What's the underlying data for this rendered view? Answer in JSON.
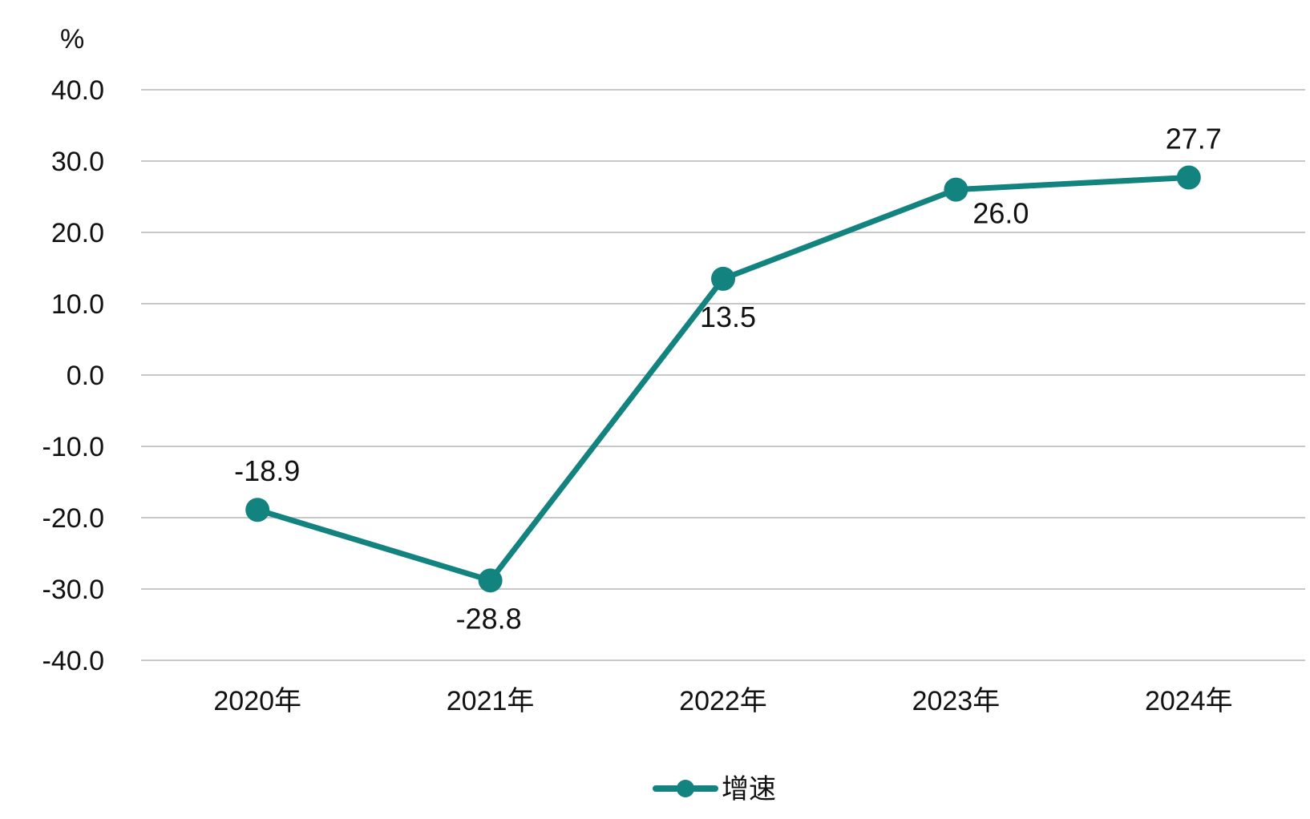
{
  "chart_data": {
    "type": "line",
    "categories": [
      "2020年",
      "2021年",
      "2022年",
      "2023年",
      "2024年"
    ],
    "series": [
      {
        "name": "增速",
        "values": [
          -18.9,
          -28.8,
          13.5,
          26.0,
          27.7
        ],
        "labels": [
          "-18.9",
          "-28.8",
          "13.5",
          "26.0",
          "27.7"
        ],
        "color": "#13837f"
      }
    ],
    "unit": "%",
    "ylim": [
      -40,
      40
    ],
    "yticks": [
      40,
      30,
      20,
      10,
      0,
      -10,
      -20,
      -30,
      -40
    ],
    "ytick_labels": [
      "40.0",
      "30.0",
      "20.0",
      "10.0",
      "0.0",
      "-10.0",
      "-20.0",
      "-30.0",
      "-40.0"
    ],
    "grid": true,
    "legend": "bottom-center",
    "gridline_color": "#c8c8c8"
  }
}
